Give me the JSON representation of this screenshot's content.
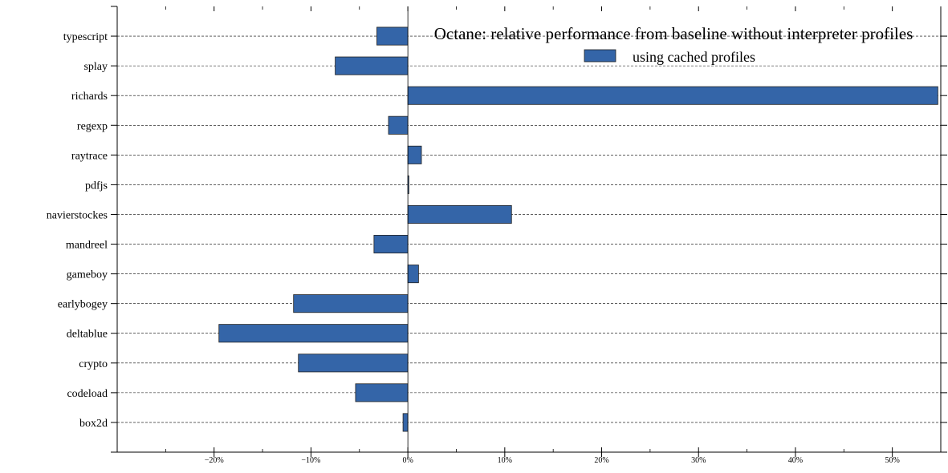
{
  "chart_data": {
    "type": "bar",
    "orientation": "horizontal",
    "title": "",
    "legend_title": "Octane: relative performance from baseline without interpreter profiles",
    "legend_placement": "top-right",
    "xlabel": "",
    "ylabel": "",
    "xlim": [
      -30,
      55
    ],
    "x_ticks": [
      -20,
      -10,
      0,
      10,
      20,
      30,
      40,
      50
    ],
    "x_tick_labels": [
      "−20%",
      "−10%",
      "0%",
      "10%",
      "20%",
      "30%",
      "40%",
      "50%"
    ],
    "grid": "horizontal dashed",
    "categories": [
      "typescript",
      "splay",
      "richards",
      "regexp",
      "raytrace",
      "pdfjs",
      "navierstockes",
      "mandreel",
      "gameboy",
      "earlybogey",
      "deltablue",
      "crypto",
      "codeload",
      "box2d"
    ],
    "series": [
      {
        "name": "using cached profiles",
        "color": "#3465a8",
        "values": [
          -3.2,
          -7.5,
          54.7,
          -2.0,
          1.4,
          0.1,
          10.7,
          -3.5,
          1.1,
          -11.8,
          -19.5,
          -11.3,
          -5.4,
          -0.5
        ]
      }
    ]
  }
}
